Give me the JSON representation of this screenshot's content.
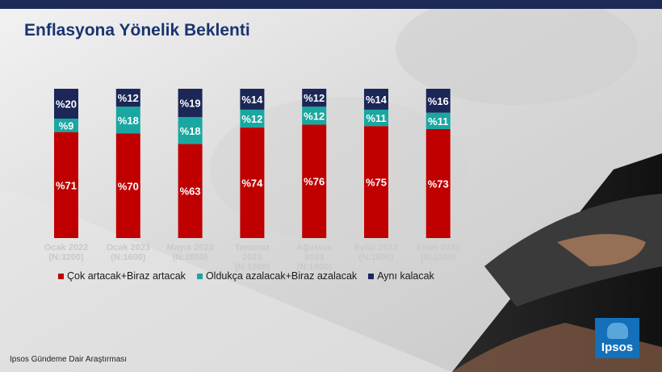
{
  "header": {
    "title": "Enflasyona Yönelik Beklenti"
  },
  "footer": {
    "source": "Ipsos Gündeme Dair Araştırması"
  },
  "logo": {
    "text": "Ipsos"
  },
  "colors": {
    "increase": "#c00000",
    "decrease": "#1aa7a0",
    "same": "#1c2757",
    "title": "#1a3470"
  },
  "chart_data": {
    "type": "bar",
    "stacked": true,
    "categories": [
      [
        "Ocak 2022",
        "(N:3200)"
      ],
      [
        "Ocak 2023",
        "(N:1600)"
      ],
      [
        "Mayıs 2023",
        "(N:2800)"
      ],
      [
        "Temmuz",
        "2023",
        "(N:1600)"
      ],
      [
        "Ağustos",
        "2023",
        "(N:1600)"
      ],
      [
        "Eylül 2023",
        "(N:1600)"
      ],
      [
        "Ekim 2023",
        "(N:1200)"
      ]
    ],
    "series": [
      {
        "name": "Çok artacak+Biraz artacak",
        "color": "#c00000",
        "values": [
          71,
          70,
          63,
          74,
          76,
          75,
          73
        ]
      },
      {
        "name": "Oldukça azalacak+Biraz azalacak",
        "color": "#1aa7a0",
        "values": [
          9,
          18,
          18,
          12,
          12,
          11,
          11
        ]
      },
      {
        "name": "Aynı kalacak",
        "color": "#1c2757",
        "values": [
          20,
          12,
          19,
          14,
          12,
          14,
          16
        ]
      }
    ],
    "label_prefix": "%",
    "ylim": [
      0,
      100
    ],
    "legend_position": "bottom"
  }
}
